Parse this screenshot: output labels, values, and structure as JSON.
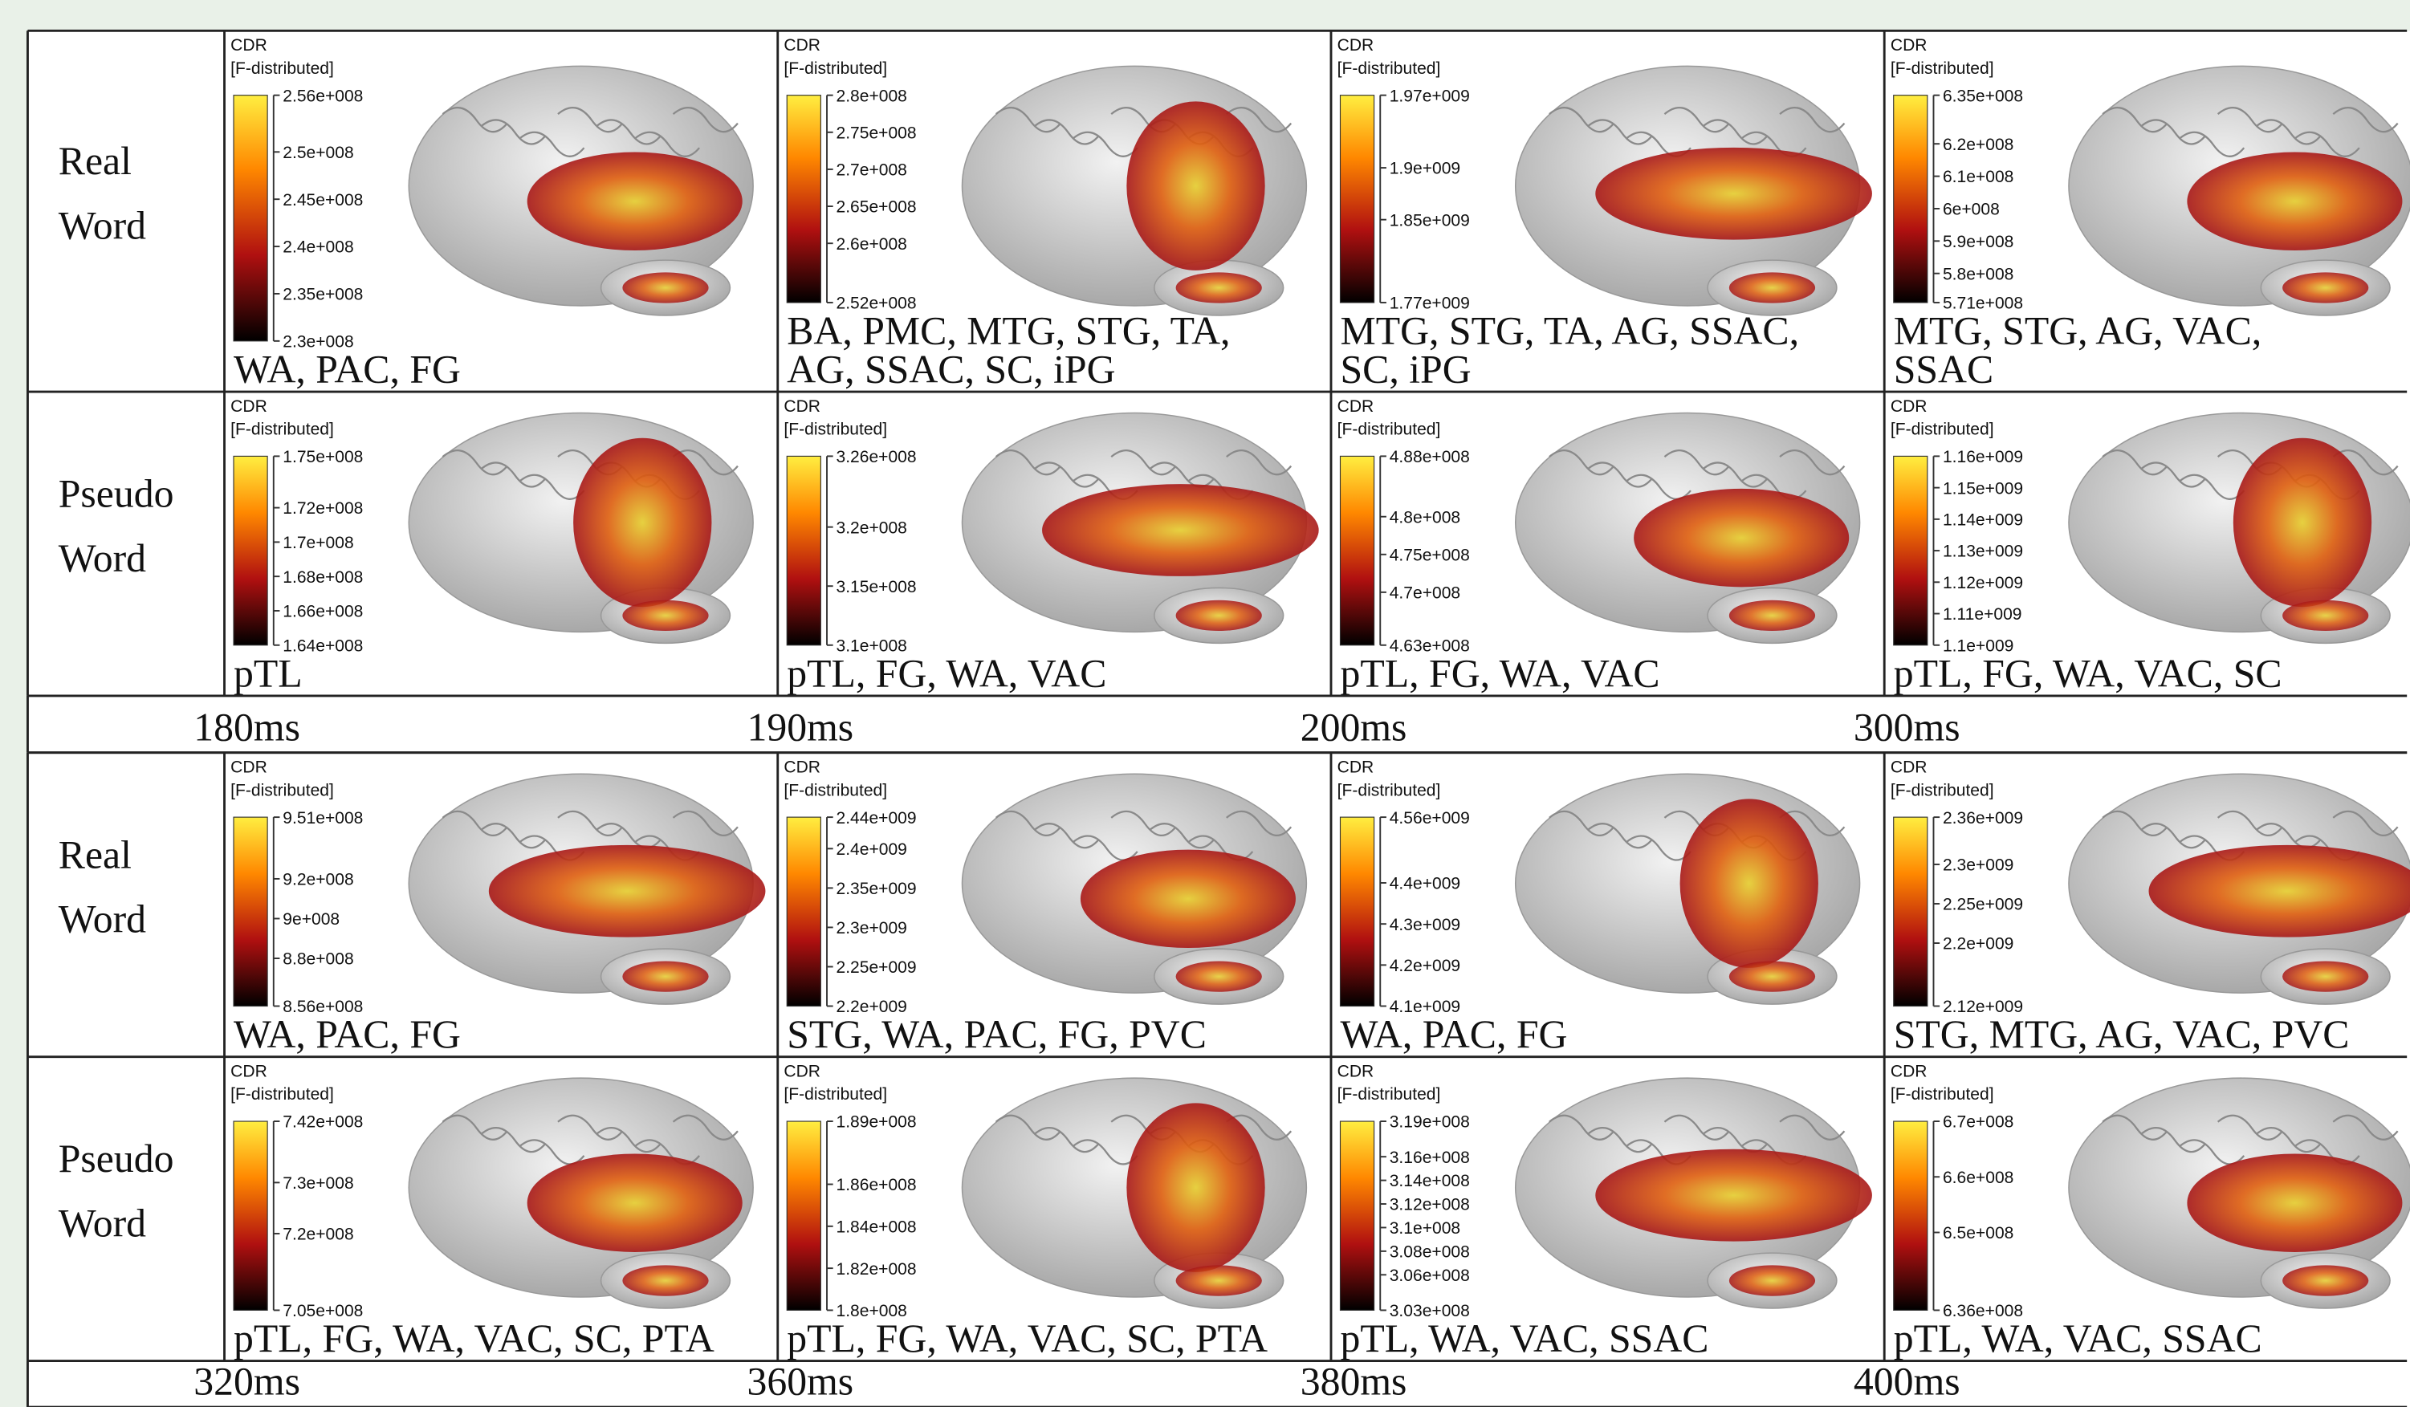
{
  "colorbar_title": [
    "CDR",
    "[F-distributed]"
  ],
  "blocks": [
    {
      "times": [
        "180ms",
        "190ms",
        "200ms",
        "300ms"
      ],
      "rows": [
        {
          "label": [
            "Real",
            "Word"
          ],
          "panels": [
            {
              "ticks": [
                "2.56e+008",
                "2.5e+008",
                "2.45e+008",
                "2.4e+008",
                "2.35e+008",
                "2.3e+008"
              ],
              "regions": [
                "WA, PAC, FG"
              ]
            },
            {
              "ticks": [
                "2.8e+008",
                "2.75e+008",
                "2.7e+008",
                "2.65e+008",
                "2.6e+008",
                "2.52e+008"
              ],
              "regions": [
                "BA, PMC, MTG, STG, TA,",
                "AG, SSAC, SC, iPG"
              ]
            },
            {
              "ticks": [
                "1.97e+009",
                "1.9e+009",
                "1.85e+009",
                "1.77e+009"
              ],
              "regions": [
                "MTG, STG, TA, AG, SSAC,",
                "SC, iPG"
              ]
            },
            {
              "ticks": [
                "6.35e+008",
                "6.2e+008",
                "6.1e+008",
                "6e+008",
                "5.9e+008",
                "5.8e+008",
                "5.71e+008"
              ],
              "regions": [
                "MTG, STG, AG, VAC,",
                "SSAC"
              ]
            }
          ]
        },
        {
          "label": [
            "Pseudo",
            "Word"
          ],
          "panels": [
            {
              "ticks": [
                "1.75e+008",
                "1.72e+008",
                "1.7e+008",
                "1.68e+008",
                "1.66e+008",
                "1.64e+008"
              ],
              "regions": [
                "pTL"
              ]
            },
            {
              "ticks": [
                "3.26e+008",
                "3.2e+008",
                "3.15e+008",
                "3.1e+008"
              ],
              "regions": [
                "pTL, FG, WA, VAC"
              ]
            },
            {
              "ticks": [
                "4.88e+008",
                "4.8e+008",
                "4.75e+008",
                "4.7e+008",
                "4.63e+008"
              ],
              "regions": [
                "pTL, FG, WA, VAC"
              ]
            },
            {
              "ticks": [
                "1.16e+009",
                "1.15e+009",
                "1.14e+009",
                "1.13e+009",
                "1.12e+009",
                "1.11e+009",
                "1.1e+009"
              ],
              "regions": [
                "pTL, FG, WA, VAC, SC"
              ]
            }
          ]
        }
      ]
    },
    {
      "times": [
        "320ms",
        "360ms",
        "380ms",
        "400ms"
      ],
      "rows": [
        {
          "label": [
            "Real",
            "Word"
          ],
          "panels": [
            {
              "ticks": [
                "9.51e+008",
                "9.2e+008",
                "9e+008",
                "8.8e+008",
                "8.56e+008"
              ],
              "regions": [
                "WA, PAC, FG"
              ]
            },
            {
              "ticks": [
                "2.44e+009",
                "2.4e+009",
                "2.35e+009",
                "2.3e+009",
                "2.25e+009",
                "2.2e+009"
              ],
              "regions": [
                "STG, WA, PAC, FG, PVC"
              ]
            },
            {
              "ticks": [
                "4.56e+009",
                "4.4e+009",
                "4.3e+009",
                "4.2e+009",
                "4.1e+009"
              ],
              "regions": [
                "WA, PAC, FG"
              ]
            },
            {
              "ticks": [
                "2.36e+009",
                "2.3e+009",
                "2.25e+009",
                "2.2e+009",
                "2.12e+009"
              ],
              "regions": [
                "STG, MTG, AG, VAC, PVC"
              ]
            }
          ]
        },
        {
          "label": [
            "Pseudo",
            "Word"
          ],
          "panels": [
            {
              "ticks": [
                "7.42e+008",
                "7.3e+008",
                "7.2e+008",
                "7.05e+008"
              ],
              "regions": [
                "pTL, FG, WA, VAC, SC, PTA"
              ]
            },
            {
              "ticks": [
                "1.89e+008",
                "1.86e+008",
                "1.84e+008",
                "1.82e+008",
                "1.8e+008"
              ],
              "regions": [
                "pTL, FG, WA, VAC, SC, PTA"
              ]
            },
            {
              "ticks": [
                "3.19e+008",
                "3.16e+008",
                "3.14e+008",
                "3.12e+008",
                "3.1e+008",
                "3.08e+008",
                "3.06e+008",
                "3.03e+008"
              ],
              "regions": [
                "pTL, WA, VAC, SSAC"
              ]
            },
            {
              "ticks": [
                "6.7e+008",
                "6.6e+008",
                "6.5e+008",
                "6.36e+008"
              ],
              "regions": [
                "pTL, WA, VAC, SSAC"
              ]
            }
          ]
        }
      ]
    }
  ]
}
